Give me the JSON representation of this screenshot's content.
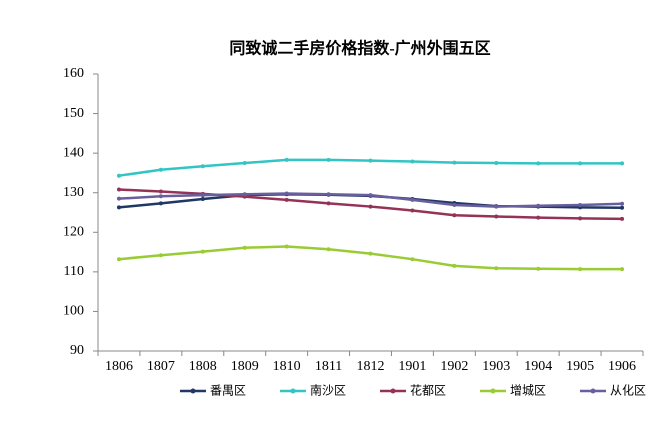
{
  "chart_data": {
    "type": "line",
    "title": "同致诚二手房价格指数-广州外围五区",
    "categories": [
      "1806",
      "1807",
      "1808",
      "1809",
      "1810",
      "1811",
      "1812",
      "1901",
      "1902",
      "1903",
      "1904",
      "1905",
      "1906"
    ],
    "series": [
      {
        "name": "番禺区",
        "color": "#1f3864",
        "values": [
          126.3,
          127.3,
          128.4,
          129.4,
          129.6,
          129.5,
          129.2,
          128.4,
          127.4,
          126.6,
          126.5,
          126.3,
          126.2
        ]
      },
      {
        "name": "南沙区",
        "color": "#33c4c4",
        "values": [
          134.3,
          135.8,
          136.7,
          137.5,
          138.3,
          138.3,
          138.1,
          137.9,
          137.6,
          137.5,
          137.4,
          137.4,
          137.4
        ]
      },
      {
        "name": "花都区",
        "color": "#943357",
        "values": [
          130.8,
          130.3,
          129.7,
          129.0,
          128.2,
          127.3,
          126.5,
          125.5,
          124.3,
          124.0,
          123.7,
          123.5,
          123.4
        ]
      },
      {
        "name": "增城区",
        "color": "#99cc33",
        "values": [
          113.2,
          114.2,
          115.1,
          116.1,
          116.4,
          115.7,
          114.6,
          113.2,
          111.5,
          110.9,
          110.8,
          110.7,
          110.7
        ]
      },
      {
        "name": "从化区",
        "color": "#6a5f9e",
        "values": [
          128.5,
          129.1,
          129.4,
          129.6,
          129.8,
          129.6,
          129.4,
          128.2,
          126.9,
          126.5,
          126.7,
          126.9,
          127.2
        ]
      }
    ],
    "ylim": [
      90,
      160
    ],
    "yticks": [
      90,
      100,
      110,
      120,
      130,
      140,
      150,
      160
    ],
    "grid": false,
    "legend": "bottom"
  }
}
